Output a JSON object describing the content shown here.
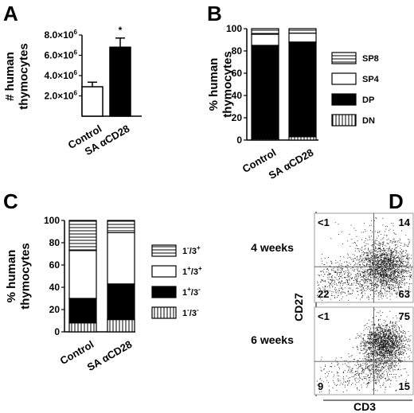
{
  "chart_data": [
    {
      "panel": "A",
      "type": "bar",
      "ylabel": "# human thymocytes",
      "categories": [
        "Control",
        "SA αCD28"
      ],
      "values": [
        2900000.0,
        6800000.0
      ],
      "errors": [
        450000.0,
        900000.0
      ],
      "ylim": [
        0,
        8000000.0
      ],
      "yticks": [
        {
          "v": 2000000.0,
          "mant": "2.0×10",
          "exp": "6"
        },
        {
          "v": 4000000.0,
          "mant": "4.0×10",
          "exp": "6"
        },
        {
          "v": 6000000.0,
          "mant": "6.0×10",
          "exp": "6"
        },
        {
          "v": 8000000.0,
          "mant": "8.0×10",
          "exp": "6"
        }
      ],
      "significance": "*",
      "colors": [
        "#ffffff",
        "#000000"
      ]
    },
    {
      "panel": "B",
      "type": "bar",
      "stacked": true,
      "ylabel": "% human thymocytes",
      "categories": [
        "Control",
        "SA αCD28"
      ],
      "ylim": [
        0,
        100
      ],
      "yticks": [
        0,
        20,
        40,
        60,
        80,
        100
      ],
      "series": [
        {
          "name": "DN",
          "values": [
            1,
            3
          ],
          "fill": "vstripes"
        },
        {
          "name": "DP",
          "values": [
            84,
            85
          ],
          "fill": "#000000"
        },
        {
          "name": "SP4",
          "values": [
            10,
            8
          ],
          "fill": "#ffffff"
        },
        {
          "name": "SP8",
          "values": [
            5,
            4
          ],
          "fill": "hstripes"
        }
      ],
      "legend": [
        "SP8",
        "SP4",
        "DP",
        "DN"
      ]
    },
    {
      "panel": "C",
      "type": "bar",
      "stacked": true,
      "ylabel": "% human thymocytes",
      "categories": [
        "Control",
        "SA αCD28"
      ],
      "ylim": [
        0,
        100
      ],
      "yticks": [
        0,
        20,
        40,
        60,
        80,
        100
      ],
      "series": [
        {
          "name": "1-/3-",
          "values": [
            8,
            11
          ],
          "fill": "vstripes"
        },
        {
          "name": "1+/3-",
          "values": [
            22,
            32
          ],
          "fill": "#000000"
        },
        {
          "name": "1+/3+",
          "values": [
            43,
            46
          ],
          "fill": "#ffffff"
        },
        {
          "name": "1-/3+",
          "values": [
            27,
            11
          ],
          "fill": "hstripes"
        }
      ],
      "legend": [
        {
          "base": "1",
          "s1": "-",
          "mid": "/3",
          "s2": "+"
        },
        {
          "base": "1",
          "s1": "+",
          "mid": "/3",
          "s2": "+"
        },
        {
          "base": "1",
          "s1": "+",
          "mid": "/3",
          "s2": "-"
        },
        {
          "base": "1",
          "s1": "-",
          "mid": "/3",
          "s2": "-"
        }
      ]
    },
    {
      "panel": "D",
      "type": "scatter",
      "xlabel": "CD3",
      "ylabel": "CD27",
      "plots": [
        {
          "name": "4 weeks",
          "quadrants": {
            "ul": "<1",
            "ur": "14",
            "ll": "22",
            "lr": "63"
          }
        },
        {
          "name": "6 weeks",
          "quadrants": {
            "ul": "<1",
            "ur": "75",
            "ll": "9",
            "lr": "15"
          }
        }
      ]
    }
  ]
}
